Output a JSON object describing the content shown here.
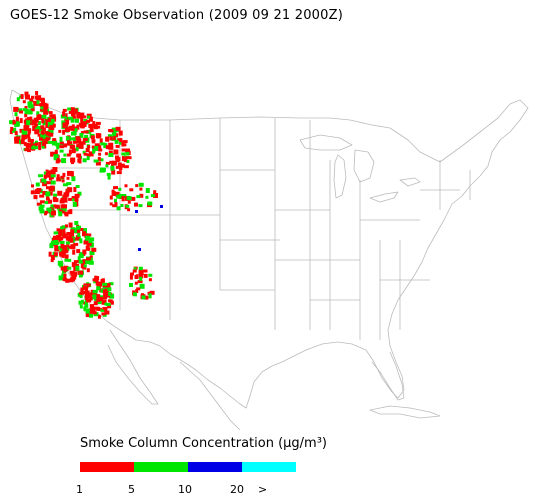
{
  "title": "GOES-12 Smoke Observation (2009 09 21  2000Z)",
  "legend": {
    "title": "Smoke Column Concentration (μg/m³)",
    "colors": [
      "#ff0000",
      "#00e600",
      "#0000e6",
      "#00ffff"
    ],
    "ticks": [
      "1",
      "5",
      "10",
      "20",
      ">"
    ]
  },
  "map": {
    "region": "conterminous-united-states",
    "boundary_color": "#bbbbbb",
    "smoke_region": "western-states"
  }
}
